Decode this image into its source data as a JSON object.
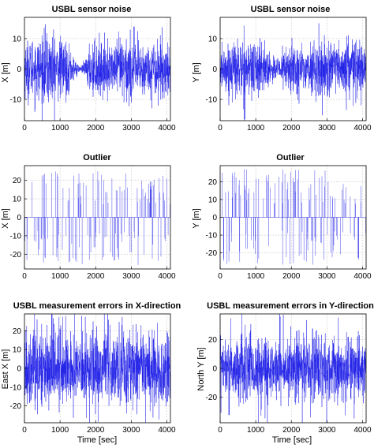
{
  "chart_data": [
    {
      "id": "p1",
      "type": "line",
      "title": "USBL sensor noise",
      "xlabel": "",
      "ylabel": "X [m]",
      "xlim": [
        0,
        4100
      ],
      "ylim": [
        -17,
        17
      ],
      "xticks": [
        0,
        1000,
        2000,
        3000,
        4000
      ],
      "yticks": [
        -10,
        0,
        10
      ],
      "grid": true,
      "series_color": "#1a1ae6",
      "series": [
        {
          "x": [
            0,
            200,
            400,
            600,
            800,
            1000,
            1200,
            1400,
            1550,
            1700,
            1800,
            2000,
            2200,
            2400,
            2600,
            2800,
            3000,
            3200,
            3400,
            3600,
            3800,
            4000,
            4100
          ],
          "amplitude": [
            12,
            13,
            13,
            15,
            16,
            13,
            11,
            5,
            1,
            3,
            10,
            12,
            11,
            9,
            12,
            15,
            14,
            13,
            10,
            12,
            13,
            11,
            10
          ]
        }
      ]
    },
    {
      "id": "p2",
      "type": "line",
      "title": "USBL sensor noise",
      "xlabel": "",
      "ylabel": "Y [m]",
      "xlim": [
        0,
        4100
      ],
      "ylim": [
        -17,
        17
      ],
      "xticks": [
        0,
        1000,
        2000,
        3000,
        4000
      ],
      "yticks": [
        -10,
        0,
        10
      ],
      "grid": true,
      "series_color": "#1a1ae6",
      "series": [
        {
          "x": [
            0,
            200,
            400,
            600,
            800,
            1000,
            1200,
            1400,
            1550,
            1700,
            1800,
            2000,
            2200,
            2400,
            2600,
            2800,
            3000,
            3200,
            3400,
            3600,
            3800,
            4000,
            4100
          ],
          "amplitude": [
            9,
            10,
            12,
            13,
            14,
            12,
            10,
            7,
            5,
            6,
            9,
            11,
            10,
            8,
            10,
            13,
            12,
            11,
            9,
            12,
            14,
            10,
            9
          ]
        }
      ]
    },
    {
      "id": "p3",
      "type": "line",
      "title": "Outlier",
      "xlabel": "",
      "ylabel": "X [m]",
      "xlim": [
        0,
        4100
      ],
      "ylim": [
        -28,
        28
      ],
      "xticks": [
        0,
        1000,
        2000,
        3000,
        4000
      ],
      "yticks": [
        -20,
        -10,
        0,
        10,
        20
      ],
      "grid": true,
      "series_color": "#1a1ae6",
      "series": [
        {
          "x": [
            0,
            1000,
            2000,
            3000,
            4000,
            4100
          ],
          "amplitude": [
            26,
            26,
            26,
            26,
            26,
            26
          ]
        }
      ]
    },
    {
      "id": "p4",
      "type": "line",
      "title": "Outlier",
      "xlabel": "",
      "ylabel": "Y [m]",
      "xlim": [
        0,
        4100
      ],
      "ylim": [
        -29,
        29
      ],
      "xticks": [
        0,
        1000,
        2000,
        3000,
        4000
      ],
      "yticks": [
        -20,
        -10,
        0,
        10,
        20
      ],
      "grid": true,
      "series_color": "#1a1ae6",
      "series": [
        {
          "x": [
            0,
            1000,
            2000,
            3000,
            4000,
            4100
          ],
          "amplitude": [
            27,
            27,
            27,
            27,
            27,
            27
          ]
        }
      ]
    },
    {
      "id": "p5",
      "type": "line",
      "title": "USBL measurement errors in X-direction",
      "xlabel": "Time [sec]",
      "ylabel": "East X [m]",
      "xlim": [
        0,
        4100
      ],
      "ylim": [
        -29,
        29
      ],
      "xticks": [
        0,
        1000,
        2000,
        3000,
        4000
      ],
      "yticks": [
        -20,
        -10,
        0,
        10,
        20
      ],
      "grid": true,
      "series_color": "#1a1ae6",
      "series": [
        {
          "x": [
            0,
            500,
            1000,
            1500,
            2000,
            2500,
            3000,
            3500,
            4000,
            4100
          ],
          "amplitude": [
            22,
            24,
            26,
            22,
            25,
            24,
            26,
            24,
            23,
            22
          ]
        }
      ]
    },
    {
      "id": "p6",
      "type": "line",
      "title": "USBL measurement errors in Y-direction",
      "xlabel": "Time [sec]",
      "ylabel": "North Y [m]",
      "xlim": [
        0,
        4100
      ],
      "ylim": [
        -38,
        38
      ],
      "xticks": [
        0,
        1000,
        2000,
        3000,
        4000
      ],
      "yticks": [
        -20,
        0,
        20
      ],
      "grid": true,
      "series_color": "#1a1ae6",
      "series": [
        {
          "x": [
            0,
            500,
            1000,
            1500,
            2000,
            2500,
            3000,
            3500,
            4000,
            4100
          ],
          "amplitude": [
            24,
            28,
            30,
            26,
            28,
            30,
            32,
            26,
            24,
            22
          ]
        }
      ]
    }
  ]
}
